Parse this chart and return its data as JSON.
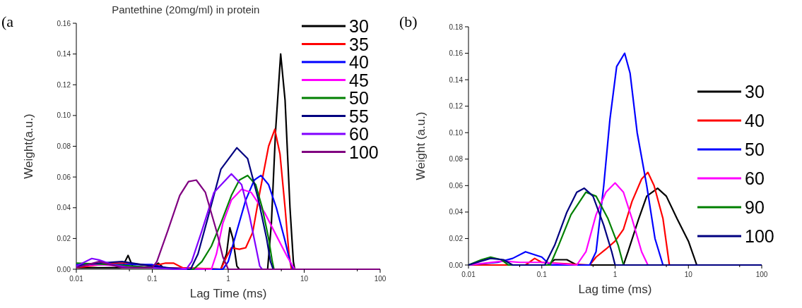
{
  "chart_data": [
    {
      "type": "line",
      "title": "Pantethine (20mg/ml) in protein",
      "xlabel": "Lag Time (ms)",
      "ylabel": "Weight(a.u.)",
      "annotations": [
        "(a"
      ],
      "log": "x",
      "legend": "right",
      "xlim": [
        0.01,
        100
      ],
      "xticks": [
        0.01,
        0.1,
        1,
        10,
        100
      ],
      "ylim": [
        0,
        0.16
      ],
      "yticks": [
        {
          "value": 0,
          "label": "0.00"
        },
        {
          "value": 0.02,
          "label": "0.02"
        },
        {
          "value": 0.04,
          "label": "0.04"
        },
        {
          "value": 0.06,
          "label": "0.06"
        },
        {
          "value": 0.08,
          "label": "0.08"
        },
        {
          "value": 0.1,
          "label": "0.10"
        },
        {
          "value": 0.12,
          "label": "0.12"
        },
        {
          "value": 0.14,
          "label": "0.14"
        },
        {
          "value": 0.16,
          "label": "0.16"
        }
      ],
      "series": [
        {
          "name": "30",
          "color": "#000000",
          "x": [
            0.01,
            0.04,
            0.048,
            0.055,
            0.1,
            0.12,
            0.14,
            0.8,
            0.95,
            1.05,
            1.15,
            1.3,
            1.4,
            3.3,
            3.7,
            4.2,
            4.9,
            5.6,
            6.5,
            7.2,
            7.5,
            100
          ],
          "values": [
            0.001,
            0.001,
            0.009,
            0.002,
            0.001,
            0.004,
            0.001,
            0,
            0.01,
            0.027,
            0.02,
            0.002,
            0,
            0,
            0.03,
            0.09,
            0.14,
            0.11,
            0.04,
            0.005,
            0,
            0
          ]
        },
        {
          "name": "35",
          "color": "#ff0000",
          "x": [
            0.01,
            0.03,
            0.05,
            0.1,
            0.15,
            0.19,
            0.25,
            0.8,
            0.95,
            1.1,
            1.4,
            1.7,
            2.1,
            2.6,
            3.4,
            4.1,
            4.8,
            5.6,
            6.3,
            6.8,
            100
          ],
          "values": [
            0.001,
            0.004,
            0.004,
            0.002,
            0.004,
            0.004,
            0.001,
            0,
            0.008,
            0.014,
            0.013,
            0.014,
            0.024,
            0.05,
            0.08,
            0.091,
            0.075,
            0.04,
            0.01,
            0,
            0
          ]
        },
        {
          "name": "40",
          "color": "#0000ff",
          "x": [
            0.01,
            0.05,
            0.1,
            0.15,
            0.2,
            0.85,
            1,
            1.3,
            1.7,
            2.2,
            2.7,
            3.4,
            4.3,
            5.5,
            6.5,
            7.2,
            100
          ],
          "values": [
            0.003,
            0.003,
            0.003,
            0.001,
            0,
            0,
            0.005,
            0.025,
            0.045,
            0.058,
            0.061,
            0.055,
            0.04,
            0.02,
            0.005,
            0,
            0
          ]
        },
        {
          "name": "45",
          "color": "#ff00ff",
          "x": [
            0.01,
            0.02,
            0.04,
            0.1,
            0.6,
            0.7,
            0.85,
            1.1,
            1.5,
            2,
            3,
            4.5,
            6,
            7.5,
            100
          ],
          "values": [
            0.002,
            0.003,
            0.002,
            0.001,
            0,
            0.01,
            0.03,
            0.045,
            0.052,
            0.05,
            0.037,
            0.02,
            0.008,
            0,
            0
          ]
        },
        {
          "name": "50",
          "color": "#008000",
          "x": [
            0.01,
            0.03,
            0.1,
            0.25,
            0.35,
            0.45,
            0.6,
            0.8,
            1.1,
            1.4,
            1.8,
            2.3,
            2.8,
            3.4,
            3.8,
            4,
            100
          ],
          "values": [
            0.004,
            0.003,
            0.001,
            0,
            0,
            0.005,
            0.015,
            0.03,
            0.048,
            0.058,
            0.061,
            0.055,
            0.04,
            0.02,
            0.005,
            0,
            0
          ]
        },
        {
          "name": "55",
          "color": "#000080",
          "x": [
            0.01,
            0.02,
            0.04,
            0.1,
            0.25,
            0.32,
            0.4,
            0.55,
            0.8,
            1.3,
            1.8,
            2.5,
            3.2,
            3.6,
            3.9,
            100
          ],
          "values": [
            0.002,
            0.004,
            0.005,
            0.002,
            0,
            0,
            0.01,
            0.035,
            0.065,
            0.079,
            0.072,
            0.045,
            0.02,
            0.005,
            0,
            0
          ]
        },
        {
          "name": "60",
          "color": "#8000ff",
          "x": [
            0.01,
            0.016,
            0.02,
            0.03,
            0.05,
            0.1,
            0.2,
            0.28,
            0.33,
            0.45,
            0.65,
            1.1,
            1.5,
            1.9,
            2.3,
            2.6,
            2.8,
            100
          ],
          "values": [
            0.002,
            0.007,
            0.006,
            0.003,
            0.001,
            0.001,
            0,
            0,
            0.005,
            0.025,
            0.05,
            0.062,
            0.055,
            0.035,
            0.015,
            0.002,
            0,
            0
          ]
        },
        {
          "name": "100",
          "color": "#800080",
          "x": [
            0.01,
            0.02,
            0.04,
            0.1,
            0.115,
            0.16,
            0.23,
            0.3,
            0.38,
            0.5,
            0.7,
            0.85,
            1,
            100
          ],
          "values": [
            0.001,
            0.005,
            0.001,
            0.001,
            0.005,
            0.025,
            0.048,
            0.057,
            0.058,
            0.05,
            0.025,
            0.008,
            0,
            0
          ]
        }
      ]
    },
    {
      "type": "line",
      "xlabel": "Lag time (ms)",
      "ylabel": "Weight (a.u.)",
      "annotations": [
        "(b)"
      ],
      "log": "x",
      "legend": "right",
      "xlim": [
        0.01,
        100
      ],
      "xticks": [
        0.01,
        0.1,
        1,
        10,
        100
      ],
      "ylim": [
        0,
        0.18
      ],
      "yticks": [
        {
          "value": 0,
          "label": "0.00"
        },
        {
          "value": 0.02,
          "label": "0.02"
        },
        {
          "value": 0.04,
          "label": "0.04"
        },
        {
          "value": 0.06,
          "label": "0.06"
        },
        {
          "value": 0.08,
          "label": "0.08"
        },
        {
          "value": 0.1,
          "label": "0.10"
        },
        {
          "value": 0.12,
          "label": "0.12"
        },
        {
          "value": 0.14,
          "label": "0.14"
        },
        {
          "value": 0.16,
          "label": "0.16"
        },
        {
          "value": 0.18,
          "label": "0.18"
        }
      ],
      "series": [
        {
          "name": "30",
          "color": "#000000",
          "x": [
            0.01,
            0.12,
            0.15,
            0.22,
            0.3,
            1.3,
            1.5,
            2.1,
            2.7,
            3.8,
            5,
            7,
            10,
            13,
            100
          ],
          "values": [
            0,
            0,
            0.004,
            0.004,
            0,
            0,
            0.01,
            0.035,
            0.052,
            0.058,
            0.052,
            0.035,
            0.018,
            0,
            0
          ]
        },
        {
          "name": "40",
          "color": "#ff0000",
          "x": [
            0.01,
            0.06,
            0.08,
            0.1,
            0.45,
            0.55,
            0.75,
            1,
            1.3,
            1.7,
            2.3,
            2.8,
            3.4,
            4.5,
            5.5,
            100
          ],
          "values": [
            0,
            0,
            0.005,
            0.002,
            0,
            0.006,
            0.012,
            0.018,
            0.027,
            0.048,
            0.065,
            0.07,
            0.06,
            0.035,
            0,
            0
          ]
        },
        {
          "name": "50",
          "color": "#0000ff",
          "x": [
            0.01,
            0.025,
            0.04,
            0.06,
            0.1,
            0.13,
            0.45,
            0.55,
            0.7,
            0.85,
            1.05,
            1.35,
            1.6,
            2,
            2.7,
            3.5,
            4.5,
            100
          ],
          "values": [
            0,
            0.002,
            0.005,
            0.01,
            0.006,
            0,
            0,
            0.01,
            0.06,
            0.11,
            0.15,
            0.16,
            0.145,
            0.1,
            0.06,
            0.02,
            0,
            0
          ]
        },
        {
          "name": "60",
          "color": "#ff00ff",
          "x": [
            0.01,
            0.03,
            0.05,
            0.1,
            0.3,
            0.4,
            0.55,
            0.75,
            1,
            1.3,
            1.7,
            2.3,
            2.8,
            100
          ],
          "values": [
            0,
            0.003,
            0.002,
            0.002,
            0,
            0.01,
            0.038,
            0.055,
            0.062,
            0.055,
            0.035,
            0.01,
            0,
            0
          ]
        },
        {
          "name": "90",
          "color": "#008000",
          "x": [
            0.01,
            0.015,
            0.02,
            0.028,
            0.035,
            0.13,
            0.17,
            0.25,
            0.4,
            0.55,
            0.8,
            1.1,
            1.3,
            100
          ],
          "values": [
            0,
            0.004,
            0.006,
            0.004,
            0,
            0,
            0.015,
            0.038,
            0.055,
            0.052,
            0.035,
            0.015,
            0,
            0
          ]
        },
        {
          "name": "100",
          "color": "#000080",
          "x": [
            0.01,
            0.015,
            0.02,
            0.03,
            0.04,
            0.11,
            0.15,
            0.22,
            0.3,
            0.38,
            0.5,
            0.7,
            0.9,
            1,
            100
          ],
          "values": [
            0,
            0.003,
            0.005,
            0.004,
            0,
            0,
            0.015,
            0.04,
            0.055,
            0.058,
            0.052,
            0.03,
            0.01,
            0,
            0
          ]
        }
      ]
    }
  ]
}
